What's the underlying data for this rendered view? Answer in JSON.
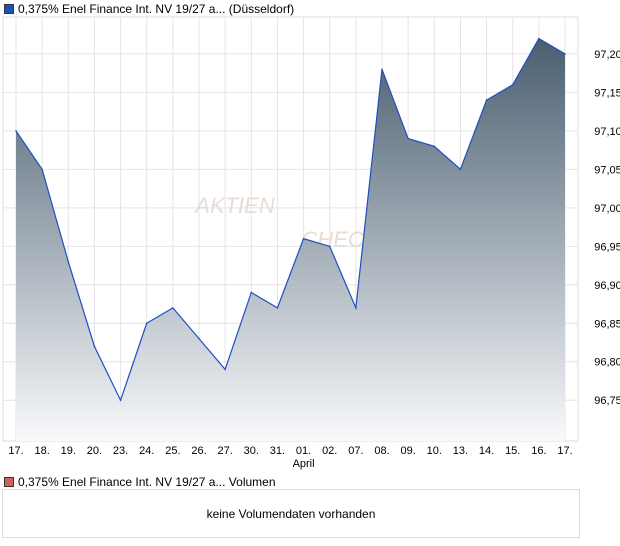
{
  "chart_data": {
    "type": "area",
    "title": "0,375% Enel Finance Int. NV 19/27 a... (Düsseldorf)",
    "series_color": "#1f4fbf",
    "fill_top_color": "#4a5e70",
    "x": [
      "17.",
      "18.",
      "19.",
      "20.",
      "23.",
      "24.",
      "25.",
      "26.",
      "27.",
      "30.",
      "31.",
      "01.",
      "02.",
      "07.",
      "08.",
      "09.",
      "10.",
      "13.",
      "14.",
      "15.",
      "16.",
      "17."
    ],
    "x_sublabel": {
      "index": 11,
      "text": "April"
    },
    "values": [
      97.1,
      97.05,
      96.93,
      96.82,
      96.75,
      96.85,
      96.87,
      96.83,
      96.79,
      96.89,
      96.87,
      96.96,
      96.95,
      96.87,
      97.18,
      97.09,
      97.08,
      97.05,
      97.14,
      97.16,
      97.22,
      97.2
    ],
    "yticks": [
      "96,75",
      "96,80",
      "96,85",
      "96,90",
      "96,95",
      "97,00",
      "97,05",
      "97,10",
      "97,15",
      "97,20"
    ],
    "ylim": [
      96.697,
      97.248
    ],
    "grid": true,
    "watermark": "AKTIEN CHECK"
  },
  "volume": {
    "legend": "0,375% Enel Finance Int. NV 19/27 a... Volumen",
    "legend_color": "#d06060",
    "message": "keine Volumendaten vorhanden"
  }
}
